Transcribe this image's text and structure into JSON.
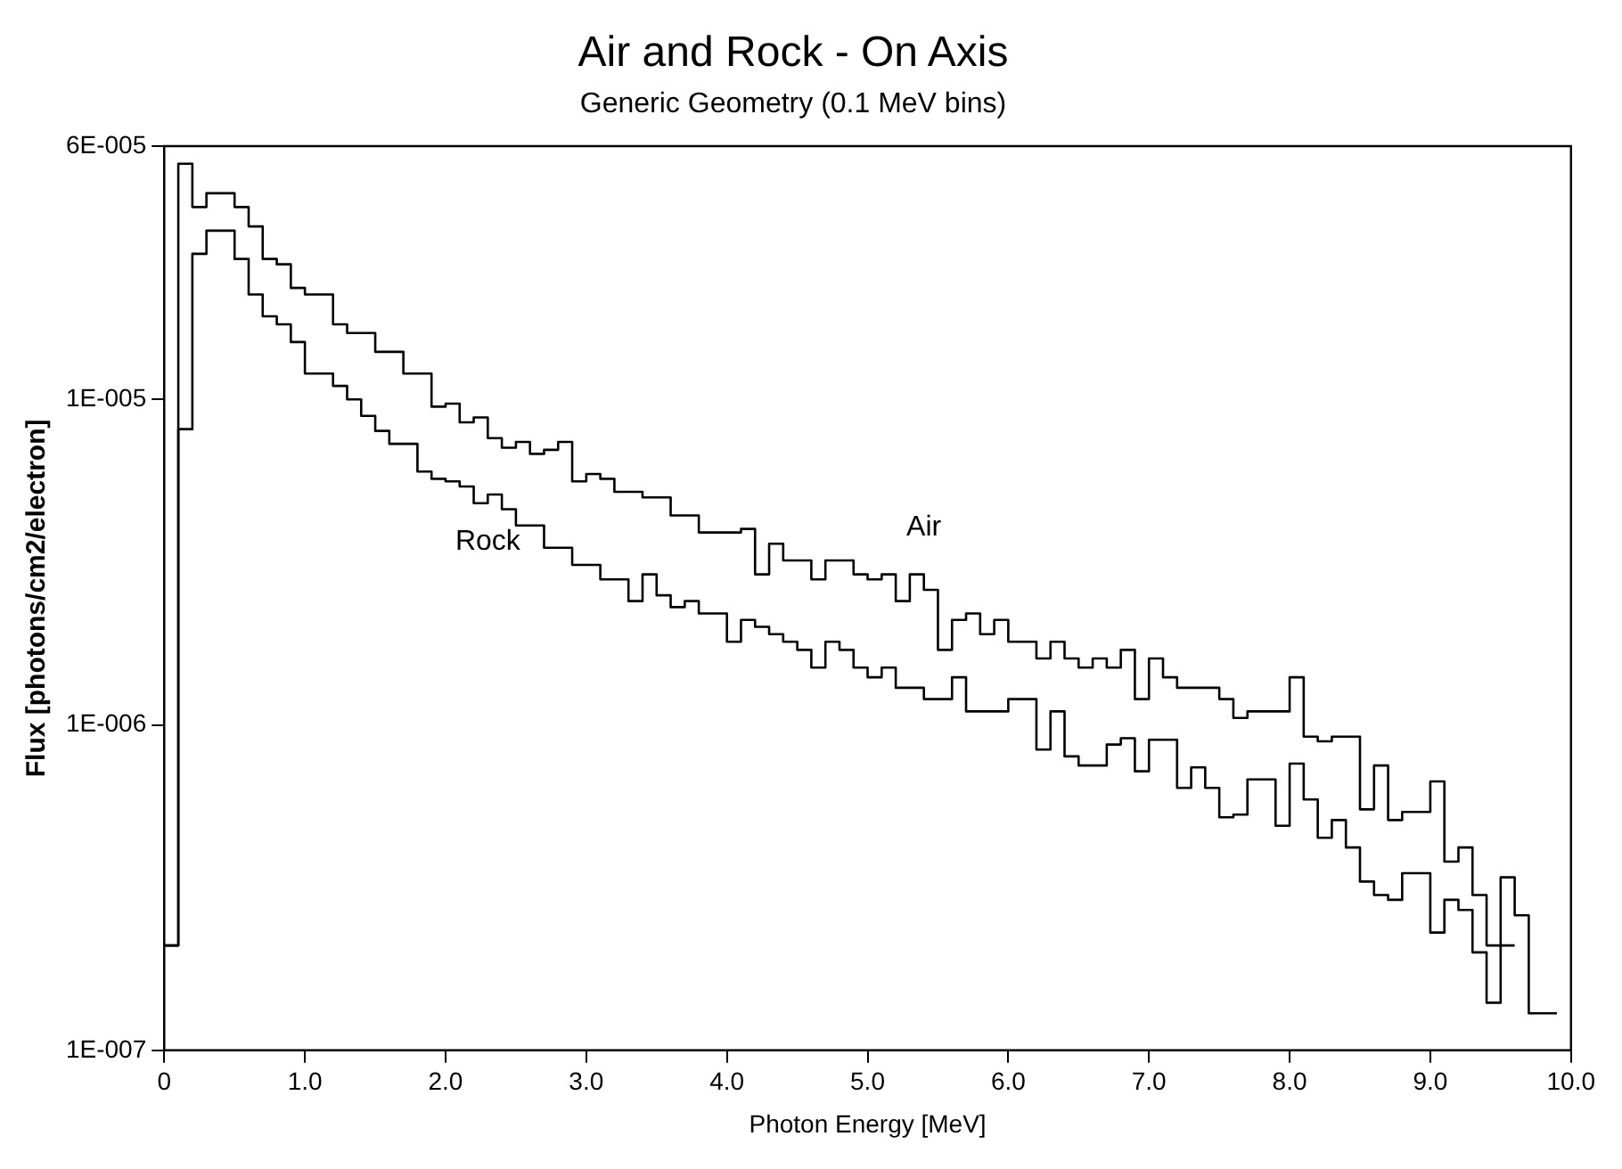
{
  "chart_data": {
    "type": "step",
    "title": "Air and Rock - On Axis",
    "subtitle": "Generic Geometry (0.1 MeV bins)",
    "xlabel": "Photon Energy [MeV]",
    "ylabel": "Flux [photons/cm2/electron]",
    "x": [
      0,
      0.1,
      0.2,
      0.3,
      0.4,
      0.5,
      0.6,
      0.7,
      0.8,
      0.9,
      1,
      1.1,
      1.2,
      1.3,
      1.4,
      1.5,
      1.6,
      1.7,
      1.8,
      1.9,
      2,
      2.1,
      2.2,
      2.3,
      2.4,
      2.5,
      2.6,
      2.7,
      2.8,
      2.9,
      3,
      3.1,
      3.2,
      3.3,
      3.4,
      3.5,
      3.6,
      3.7,
      3.8,
      3.9,
      4,
      4.1,
      4.2,
      4.3,
      4.4,
      4.5,
      4.6,
      4.7,
      4.8,
      4.9,
      5,
      5.1,
      5.2,
      5.3,
      5.4,
      5.5,
      5.6,
      5.7,
      5.8,
      5.9,
      6,
      6.1,
      6.2,
      6.3,
      6.4,
      6.5,
      6.6,
      6.7,
      6.8,
      6.9,
      7,
      7.1,
      7.2,
      7.3,
      7.4,
      7.5,
      7.6,
      7.7,
      7.8,
      7.9,
      8,
      8.1,
      8.2,
      8.3,
      8.4,
      8.5,
      8.6,
      8.7,
      8.8,
      8.9,
      9,
      9.1,
      9.2,
      9.3,
      9.4,
      9.5,
      9.6,
      9.7,
      9.8,
      9.9
    ],
    "series": [
      {
        "name": "Air",
        "color": "#000000",
        "values": [
          2.1e-07,
          2.1e-07,
          5.3e-05,
          3.9e-05,
          4.3e-05,
          4.3e-05,
          3.9e-05,
          3.4e-05,
          2.7e-05,
          2.6e-05,
          2.2e-05,
          2.1e-05,
          2.1e-05,
          1.7e-05,
          1.6e-05,
          1.6e-05,
          1.4e-05,
          1.4e-05,
          1.2e-05,
          1.2e-05,
          9.5e-06,
          9.7e-06,
          8.5e-06,
          8.8e-06,
          7.6e-06,
          7.1e-06,
          7.4e-06,
          6.8e-06,
          7e-06,
          7.4e-06,
          5.6e-06,
          5.9e-06,
          5.7e-06,
          5.2e-06,
          5.2e-06,
          5e-06,
          5e-06,
          4.4e-06,
          4.4e-06,
          3.9e-06,
          3.9e-06,
          3.9e-06,
          4e-06,
          2.9e-06,
          3.6e-06,
          3.2e-06,
          3.2e-06,
          2.8e-06,
          3.2e-06,
          3.2e-06,
          2.9e-06,
          2.8e-06,
          2.9e-06,
          2.4e-06,
          2.9e-06,
          2.6e-06,
          1.7e-06,
          2.1e-06,
          2.2e-06,
          1.9e-06,
          2.1e-06,
          1.8e-06,
          1.8e-06,
          1.6e-06,
          1.8e-06,
          1.6e-06,
          1.5e-06,
          1.6e-06,
          1.5e-06,
          1.7e-06,
          1.2e-06,
          1.6e-06,
          1.4e-06,
          1.3e-06,
          1.3e-06,
          1.3e-06,
          1.2e-06,
          1.05e-06,
          1.1e-06,
          1.1e-06,
          1.1e-06,
          1.4e-06,
          9.2e-07,
          8.9e-07,
          9.2e-07,
          9.2e-07,
          5.5e-07,
          7.5e-07,
          5.1e-07,
          5.4e-07,
          5.4e-07,
          6.7e-07,
          3.8e-07,
          4.2e-07,
          3e-07,
          2.1e-07,
          3.4e-07,
          2.6e-07,
          1.3e-07,
          1.3e-07
        ]
      },
      {
        "name": "Rock",
        "color": "#000000",
        "values": [
          2.1e-07,
          2.1e-07,
          8.1e-06,
          2.8e-05,
          3.3e-05,
          3.3e-05,
          2.7e-05,
          2.1e-05,
          1.8e-05,
          1.7e-05,
          1.5e-05,
          1.2e-05,
          1.2e-05,
          1.1e-05,
          1e-05,
          8.9e-06,
          8e-06,
          7.3e-06,
          7.3e-06,
          6e-06,
          5.7e-06,
          5.6e-06,
          5.4e-06,
          4.8e-06,
          5.1e-06,
          4.6e-06,
          4.1e-06,
          4.1e-06,
          3.5e-06,
          3.5e-06,
          3.1e-06,
          3.1e-06,
          2.8e-06,
          2.8e-06,
          2.4e-06,
          2.9e-06,
          2.5e-06,
          2.3e-06,
          2.4e-06,
          2.2e-06,
          2.2e-06,
          1.8e-06,
          2.1e-06,
          2e-06,
          1.9e-06,
          1.8e-06,
          1.7e-06,
          1.5e-06,
          1.8e-06,
          1.7e-06,
          1.5e-06,
          1.4e-06,
          1.5e-06,
          1.3e-06,
          1.3e-06,
          1.2e-06,
          1.2e-06,
          1.4e-06,
          1.1e-06,
          1.1e-06,
          1.1e-06,
          1.2e-06,
          1.2e-06,
          8.4e-07,
          1.1e-06,
          8e-07,
          7.5e-07,
          7.5e-07,
          8.7e-07,
          9.1e-07,
          7.2e-07,
          9e-07,
          9e-07,
          6.4e-07,
          7.4e-07,
          6.4e-07,
          5.2e-07,
          5.3e-07,
          6.8e-07,
          6.8e-07,
          4.9e-07,
          7.6e-07,
          5.9e-07,
          4.5e-07,
          5.1e-07,
          4.2e-07,
          3.3e-07,
          3e-07,
          2.9e-07,
          3.5e-07,
          3.5e-07,
          2.3e-07,
          2.9e-07,
          2.7e-07,
          2e-07,
          1.4e-07,
          2.1e-07,
          null,
          null,
          null
        ]
      }
    ],
    "xlim": [
      0,
      10
    ],
    "xticks": [
      0,
      {
        "value": 1,
        "label": "1.0"
      },
      {
        "value": 2,
        "label": "2.0"
      },
      {
        "value": 3,
        "label": "3.0"
      },
      {
        "value": 4,
        "label": "4.0"
      },
      {
        "value": 5,
        "label": "5.0"
      },
      {
        "value": 6,
        "label": "6.0"
      },
      {
        "value": 7,
        "label": "7.0"
      },
      {
        "value": 8,
        "label": "8.0"
      },
      {
        "value": 9,
        "label": "9.0"
      },
      {
        "value": 10,
        "label": "10.0"
      }
    ],
    "ylim": [
      1e-07,
      6e-05
    ],
    "yticks": [
      {
        "value": 1e-07,
        "label": "1E-007"
      },
      {
        "value": 1e-06,
        "label": "1E-006"
      },
      {
        "value": 1e-05,
        "label": "1E-005"
      },
      {
        "value": 6e-05,
        "label": "6E-005"
      }
    ],
    "log": "y",
    "grid": false,
    "legend": false,
    "marker": "none",
    "line_style": "solid"
  }
}
